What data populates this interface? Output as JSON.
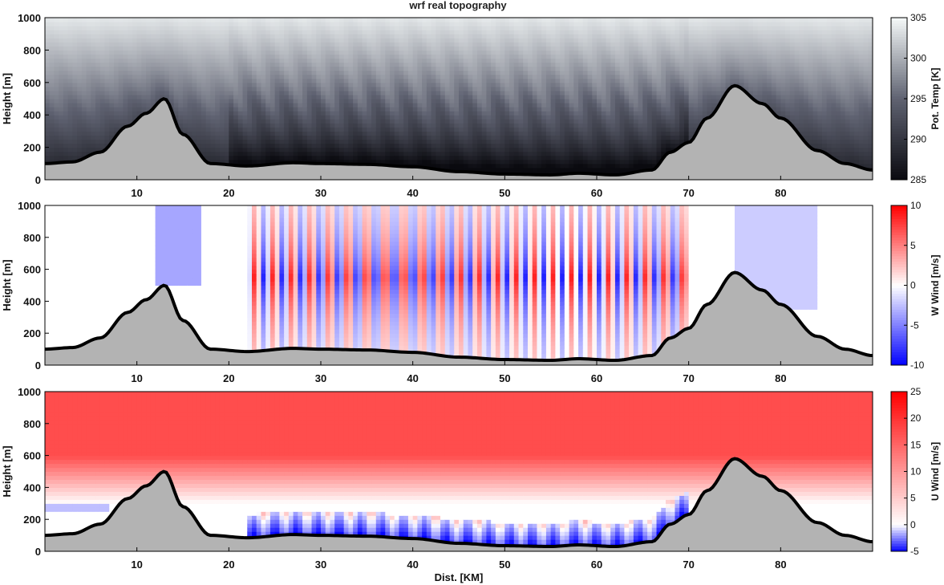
{
  "title": "wrf real topography",
  "colors": {
    "terrain_fill": "#b3b3b3",
    "terrain_line": "#000000",
    "temp_low": "#0a0a0f",
    "temp_mid": "#5f6271",
    "temp_high": "#f4f8f8",
    "wind_neg": "#0000ff",
    "wind_zero": "#ffffff",
    "wind_pos": "#ff0000"
  },
  "chart_data": [
    {
      "type": "heatmap",
      "name": "potential-temperature",
      "ylabel": "Height [m]",
      "xlabel": "",
      "xlim": [
        0,
        90
      ],
      "ylim": [
        0,
        1000
      ],
      "xticks": [
        "10",
        "20",
        "30",
        "40",
        "50",
        "60",
        "70",
        "80"
      ],
      "yticks": [
        "0",
        "200",
        "400",
        "600",
        "800",
        "1000"
      ],
      "colorbar": {
        "label": "Pot. Temp [K]",
        "range": [
          285,
          305
        ],
        "ticks": [
          "285",
          "290",
          "295",
          "300",
          "305"
        ],
        "colormap": "bone"
      },
      "terrain": {
        "x": [
          0,
          3,
          6,
          9,
          11,
          13,
          15,
          18,
          22,
          27,
          30,
          35,
          40,
          45,
          50,
          55,
          58,
          62,
          66,
          68,
          70,
          72,
          75,
          78,
          80,
          84,
          87,
          90
        ],
        "y": [
          100,
          110,
          170,
          330,
          410,
          500,
          280,
          100,
          85,
          105,
          100,
          95,
          80,
          50,
          35,
          30,
          40,
          30,
          60,
          170,
          230,
          380,
          580,
          470,
          380,
          180,
          100,
          60
        ]
      }
    },
    {
      "type": "heatmap",
      "name": "vertical-wind",
      "ylabel": "Height [m]",
      "xlabel": "",
      "xlim": [
        0,
        90
      ],
      "ylim": [
        0,
        1000
      ],
      "xticks": [
        "10",
        "20",
        "30",
        "40",
        "50",
        "60",
        "70",
        "80"
      ],
      "yticks": [
        "0",
        "200",
        "400",
        "600",
        "800",
        "1000"
      ],
      "colorbar": {
        "label": "W Wind [m/s]",
        "range": [
          -10,
          10
        ],
        "ticks": [
          "-10",
          "-5",
          "0",
          "5",
          "10"
        ],
        "colormap": "blue-white-red"
      }
    },
    {
      "type": "heatmap",
      "name": "horizontal-wind",
      "ylabel": "Height [m]",
      "xlabel": "Dist. [KM]",
      "xlim": [
        0,
        90
      ],
      "ylim": [
        0,
        1000
      ],
      "xticks": [
        "10",
        "20",
        "30",
        "40",
        "50",
        "60",
        "70",
        "80"
      ],
      "yticks": [
        "0",
        "200",
        "400",
        "600",
        "800",
        "1000"
      ],
      "colorbar": {
        "label": "U Wind [m/s]",
        "range": [
          -5,
          25
        ],
        "ticks": [
          "-5",
          "0",
          "5",
          "10",
          "15",
          "20",
          "25"
        ],
        "colormap": "blue-white-red"
      }
    }
  ]
}
